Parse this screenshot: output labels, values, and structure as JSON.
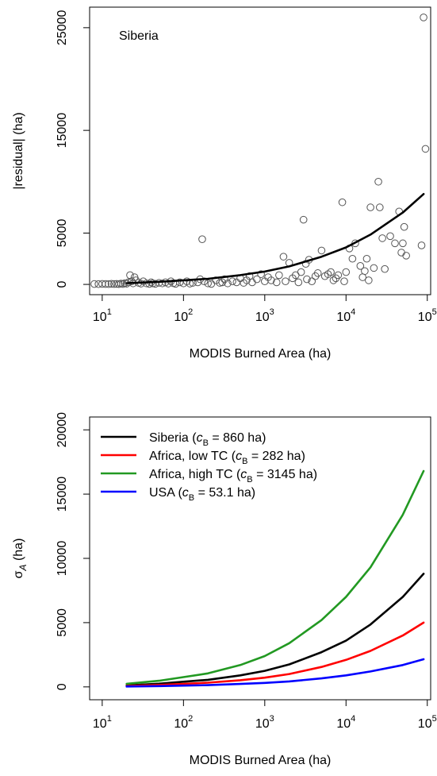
{
  "chart_data": [
    {
      "type": "scatter",
      "annotation": "Siberia",
      "xlabel": "MODIS Burned Area (ha)",
      "ylabel": "|residual| (ha)",
      "xscale": "log",
      "xlim": [
        7,
        110000
      ],
      "ylim": [
        -1000,
        27000
      ],
      "xticks": [
        10,
        100,
        1000,
        10000,
        100000
      ],
      "xtick_labels": [
        {
          "base": "10",
          "exp": "1"
        },
        {
          "base": "10",
          "exp": "2"
        },
        {
          "base": "10",
          "exp": "3"
        },
        {
          "base": "10",
          "exp": "4"
        },
        {
          "base": "10",
          "exp": "5"
        }
      ],
      "yticks": [
        0,
        5000,
        15000,
        25000
      ],
      "ytick_labels": [
        "0",
        "5000",
        "15000",
        "25000"
      ],
      "grid": false,
      "series": [
        {
          "marker": "open-circle",
          "points": [
            [
              8,
              40
            ],
            [
              9,
              30
            ],
            [
              10,
              50
            ],
            [
              11,
              40
            ],
            [
              12,
              30
            ],
            [
              13,
              60
            ],
            [
              14,
              40
            ],
            [
              15,
              50
            ],
            [
              16,
              30
            ],
            [
              17,
              80
            ],
            [
              18,
              40
            ],
            [
              19,
              120
            ],
            [
              20,
              70
            ],
            [
              21,
              200
            ],
            [
              22,
              900
            ],
            [
              23,
              300
            ],
            [
              24,
              100
            ],
            [
              25,
              700
            ],
            [
              26,
              400
            ],
            [
              28,
              150
            ],
            [
              30,
              80
            ],
            [
              32,
              300
            ],
            [
              35,
              100
            ],
            [
              38,
              50
            ],
            [
              40,
              200
            ],
            [
              42,
              100
            ],
            [
              45,
              60
            ],
            [
              50,
              150
            ],
            [
              55,
              100
            ],
            [
              60,
              200
            ],
            [
              65,
              80
            ],
            [
              70,
              300
            ],
            [
              75,
              120
            ],
            [
              80,
              60
            ],
            [
              90,
              200
            ],
            [
              100,
              100
            ],
            [
              110,
              300
            ],
            [
              120,
              80
            ],
            [
              130,
              150
            ],
            [
              150,
              200
            ],
            [
              160,
              500
            ],
            [
              170,
              4400
            ],
            [
              180,
              300
            ],
            [
              200,
              100
            ],
            [
              220,
              50
            ],
            [
              250,
              400
            ],
            [
              280,
              150
            ],
            [
              300,
              200
            ],
            [
              320,
              500
            ],
            [
              350,
              100
            ],
            [
              400,
              300
            ],
            [
              450,
              200
            ],
            [
              500,
              600
            ],
            [
              550,
              150
            ],
            [
              600,
              400
            ],
            [
              650,
              800
            ],
            [
              700,
              200
            ],
            [
              800,
              500
            ],
            [
              900,
              1000
            ],
            [
              1000,
              300
            ],
            [
              1100,
              700
            ],
            [
              1200,
              400
            ],
            [
              1400,
              200
            ],
            [
              1500,
              900
            ],
            [
              1700,
              2700
            ],
            [
              1800,
              300
            ],
            [
              2000,
              2100
            ],
            [
              2200,
              600
            ],
            [
              2400,
              900
            ],
            [
              2600,
              200
            ],
            [
              2800,
              1200
            ],
            [
              3000,
              6300
            ],
            [
              3200,
              2000
            ],
            [
              3300,
              500
            ],
            [
              3500,
              2400
            ],
            [
              3800,
              300
            ],
            [
              4200,
              800
            ],
            [
              4500,
              1100
            ],
            [
              5000,
              3300
            ],
            [
              5500,
              800
            ],
            [
              6000,
              1000
            ],
            [
              6500,
              1200
            ],
            [
              7000,
              400
            ],
            [
              7500,
              600
            ],
            [
              8000,
              900
            ],
            [
              9000,
              8000
            ],
            [
              9500,
              300
            ],
            [
              10000,
              1200
            ],
            [
              11000,
              3500
            ],
            [
              12000,
              2500
            ],
            [
              13000,
              4000
            ],
            [
              15000,
              1800
            ],
            [
              16000,
              700
            ],
            [
              17000,
              1300
            ],
            [
              18000,
              2500
            ],
            [
              19000,
              400
            ],
            [
              20000,
              7500
            ],
            [
              22000,
              1600
            ],
            [
              25000,
              10000
            ],
            [
              26000,
              7500
            ],
            [
              28000,
              4500
            ],
            [
              30000,
              1500
            ],
            [
              35000,
              4700
            ],
            [
              40000,
              4000
            ],
            [
              45000,
              7100
            ],
            [
              48000,
              3100
            ],
            [
              50000,
              4000
            ],
            [
              52000,
              5600
            ],
            [
              55000,
              2800
            ],
            [
              85000,
              3800
            ],
            [
              90000,
              26000
            ],
            [
              95000,
              13200
            ]
          ]
        },
        {
          "marker": "line",
          "color": "#000000",
          "points": [
            [
              20,
              120
            ],
            [
              50,
              250
            ],
            [
              100,
              400
            ],
            [
              200,
              550
            ],
            [
              500,
              900
            ],
            [
              1000,
              1250
            ],
            [
              2000,
              1750
            ],
            [
              5000,
              2700
            ],
            [
              10000,
              3600
            ],
            [
              20000,
              4850
            ],
            [
              50000,
              7000
            ],
            [
              90000,
              8800
            ]
          ]
        }
      ]
    },
    {
      "type": "line",
      "xlabel": "MODIS Burned Area (ha)",
      "ylabel": {
        "base": "σ",
        "sub": "A",
        "suffix": " (ha)"
      },
      "xscale": "log",
      "xlim": [
        7,
        110000
      ],
      "ylim": [
        -1000,
        21000
      ],
      "xticks": [
        10,
        100,
        1000,
        10000,
        100000
      ],
      "xtick_labels": [
        {
          "base": "10",
          "exp": "1"
        },
        {
          "base": "10",
          "exp": "2"
        },
        {
          "base": "10",
          "exp": "3"
        },
        {
          "base": "10",
          "exp": "4"
        },
        {
          "base": "10",
          "exp": "5"
        }
      ],
      "yticks": [
        0,
        5000,
        10000,
        15000,
        20000
      ],
      "ytick_labels": [
        "0",
        "5000",
        "10000",
        "15000",
        "20000"
      ],
      "grid": false,
      "legend": "top-left",
      "series": [
        {
          "name": "Siberia (cB = 860 ha)",
          "label_parts": {
            "before": "Siberia (",
            "c": "c",
            "sub": "B",
            "after": " = 860 ha)"
          },
          "color": "#000000",
          "points": [
            [
              20,
              120
            ],
            [
              50,
              250
            ],
            [
              100,
              400
            ],
            [
              200,
              550
            ],
            [
              500,
              900
            ],
            [
              1000,
              1250
            ],
            [
              2000,
              1750
            ],
            [
              5000,
              2700
            ],
            [
              10000,
              3600
            ],
            [
              20000,
              4850
            ],
            [
              50000,
              7000
            ],
            [
              90000,
              8800
            ]
          ]
        },
        {
          "name": "Africa, low TC (cB = 282 ha)",
          "label_parts": {
            "before": "Africa, low TC (",
            "c": "c",
            "sub": "B",
            "after": " = 282 ha)"
          },
          "color": "#ff0000",
          "points": [
            [
              20,
              70
            ],
            [
              50,
              150
            ],
            [
              100,
              230
            ],
            [
              200,
              330
            ],
            [
              500,
              520
            ],
            [
              1000,
              720
            ],
            [
              2000,
              1000
            ],
            [
              5000,
              1550
            ],
            [
              10000,
              2100
            ],
            [
              20000,
              2800
            ],
            [
              50000,
              4000
            ],
            [
              90000,
              5000
            ]
          ]
        },
        {
          "name": "Africa, high TC (cB = 3145 ha)",
          "label_parts": {
            "before": "Africa, high TC (",
            "c": "c",
            "sub": "B",
            "after": " = 3145 ha)"
          },
          "color": "#229922",
          "points": [
            [
              20,
              240
            ],
            [
              50,
              480
            ],
            [
              100,
              760
            ],
            [
              200,
              1050
            ],
            [
              500,
              1700
            ],
            [
              1000,
              2400
            ],
            [
              2000,
              3400
            ],
            [
              5000,
              5200
            ],
            [
              10000,
              7000
            ],
            [
              20000,
              9300
            ],
            [
              50000,
              13400
            ],
            [
              90000,
              16800
            ]
          ]
        },
        {
          "name": "USA (cB = 53.1 ha)",
          "label_parts": {
            "before": "USA (",
            "c": "c",
            "sub": "B",
            "after": " = 53.1 ha)"
          },
          "color": "#0000ff",
          "points": [
            [
              20,
              30
            ],
            [
              50,
              60
            ],
            [
              100,
              100
            ],
            [
              200,
              140
            ],
            [
              500,
              230
            ],
            [
              1000,
              310
            ],
            [
              2000,
              430
            ],
            [
              5000,
              660
            ],
            [
              10000,
              900
            ],
            [
              20000,
              1200
            ],
            [
              50000,
              1700
            ],
            [
              90000,
              2150
            ]
          ]
        }
      ]
    }
  ]
}
